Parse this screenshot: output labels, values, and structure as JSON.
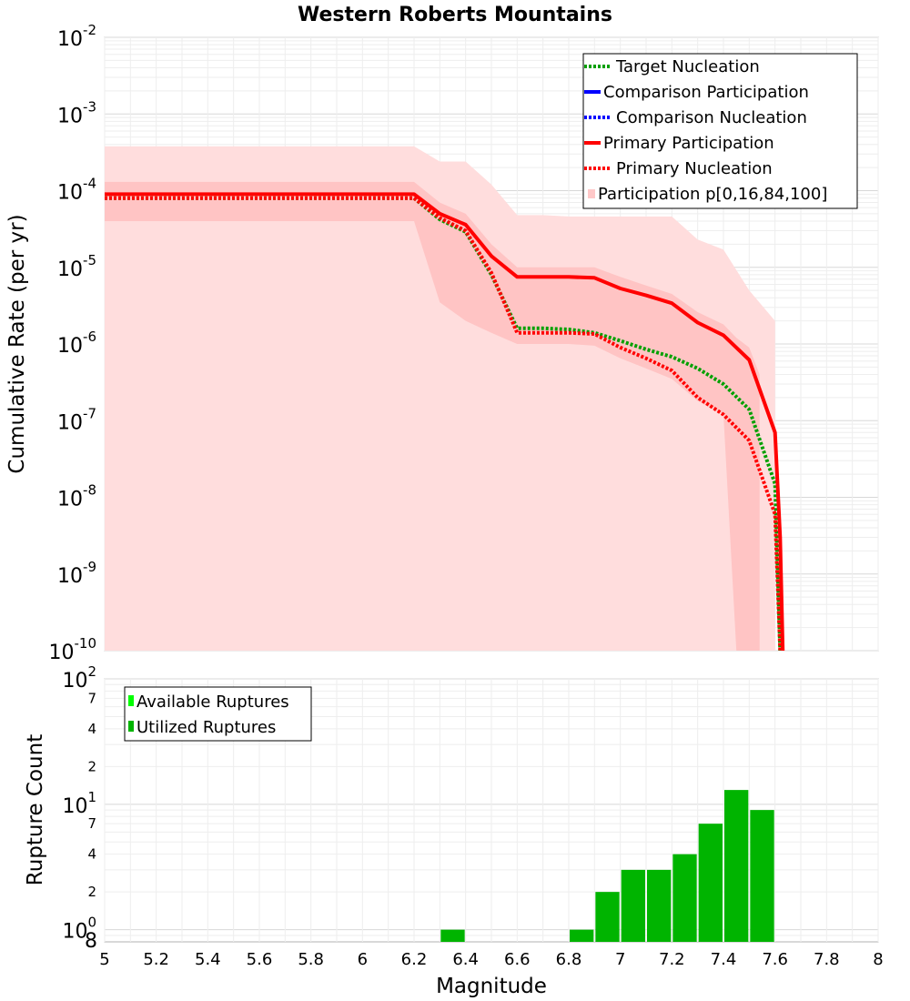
{
  "chart_data": [
    {
      "type": "line",
      "title": "Western Roberts Mountains",
      "xlabel": "Magnitude",
      "ylabel": "Cumulative Rate (per yr)",
      "xlim": [
        5,
        8
      ],
      "ylim": [
        1e-10,
        0.01
      ],
      "yscale": "log",
      "y_tick_base": "10",
      "y_tick_exps": [
        "-10",
        "-9",
        "-8",
        "-7",
        "-6",
        "-5",
        "-4",
        "-3",
        "-2"
      ],
      "legend_position": "top-right",
      "legend": [
        {
          "label": "Target Nucleation",
          "color": "#00a000",
          "style": "dotted"
        },
        {
          "label": "Comparison Participation",
          "color": "#0000ff",
          "style": "solid"
        },
        {
          "label": "Comparison Nucleation",
          "color": "#0000ff",
          "style": "dotted"
        },
        {
          "label": "Primary Participation",
          "color": "#ff0000",
          "style": "solid"
        },
        {
          "label": "Primary Nucleation",
          "color": "#ff0000",
          "style": "dotted"
        },
        {
          "label": "Participation p[0,16,84,100]",
          "color": "#ffc8c8",
          "style": "band"
        }
      ],
      "series": [
        {
          "name": "Primary Participation",
          "color": "#ff0000",
          "style": "solid",
          "x": [
            5.0,
            6.2,
            6.3,
            6.4,
            6.5,
            6.6,
            6.7,
            6.8,
            6.9,
            7.0,
            7.1,
            7.2,
            7.3,
            7.4,
            7.5,
            7.6,
            7.62,
            7.63
          ],
          "y": [
            9e-05,
            9e-05,
            5e-05,
            3.6e-05,
            1.4e-05,
            7.5e-06,
            7.5e-06,
            7.5e-06,
            7.3e-06,
            5.3e-06,
            4.3e-06,
            3.4e-06,
            1.9e-06,
            1.3e-06,
            6.2e-07,
            7e-08,
            3e-09,
            1e-10
          ]
        },
        {
          "name": "Primary Nucleation",
          "color": "#ff0000",
          "style": "dotted",
          "x": [
            5.0,
            6.2,
            6.3,
            6.4,
            6.5,
            6.6,
            6.7,
            6.8,
            6.9,
            7.0,
            7.1,
            7.2,
            7.3,
            7.4,
            7.5,
            7.6,
            7.62
          ],
          "y": [
            8e-05,
            8e-05,
            4.4e-05,
            3e-05,
            8.5e-06,
            1.4e-06,
            1.4e-06,
            1.4e-06,
            1.35e-06,
            9e-07,
            6.5e-07,
            4.5e-07,
            2e-07,
            1.2e-07,
            5.5e-08,
            6e-09,
            1e-10
          ]
        },
        {
          "name": "Target Nucleation",
          "color": "#00a000",
          "style": "dotted",
          "x": [
            5.0,
            6.2,
            6.3,
            6.4,
            6.5,
            6.6,
            6.7,
            6.8,
            6.9,
            7.0,
            7.1,
            7.2,
            7.3,
            7.4,
            7.5,
            7.6,
            7.62
          ],
          "y": [
            8e-05,
            8e-05,
            4.2e-05,
            2.9e-05,
            8e-06,
            1.6e-06,
            1.6e-06,
            1.55e-06,
            1.4e-06,
            1.1e-06,
            8.5e-07,
            6.8e-07,
            4.8e-07,
            3e-07,
            1.4e-07,
            1.5e-08,
            1e-10
          ]
        }
      ],
      "bands": [
        {
          "name": "Participation p[0,100]",
          "color": "#ffdddd",
          "x": [
            5.0,
            6.2,
            6.3,
            6.4,
            6.5,
            6.6,
            6.7,
            6.8,
            6.9,
            7.0,
            7.1,
            7.2,
            7.3,
            7.4,
            7.5,
            7.6
          ],
          "upper": [
            0.00038,
            0.00038,
            0.00024,
            0.00024,
            0.00012,
            4.8e-05,
            4.8e-05,
            4.6e-05,
            4.6e-05,
            4.6e-05,
            4.6e-05,
            4.6e-05,
            2.3e-05,
            1.7e-05,
            5e-06,
            2e-06
          ],
          "lower": [
            1e-10,
            1e-10,
            1e-10,
            1e-10,
            1e-10,
            1e-10,
            1e-10,
            1e-10,
            1e-10,
            1e-10,
            1e-10,
            1e-10,
            1e-10,
            1e-10,
            1e-10,
            1e-10
          ]
        },
        {
          "name": "Participation p[16,84]",
          "color": "#ffc4c4",
          "x": [
            5.0,
            6.2,
            6.3,
            6.4,
            6.5,
            6.6,
            6.7,
            6.8,
            6.9,
            7.0,
            7.1,
            7.2,
            7.3,
            7.4,
            7.45,
            7.5,
            7.54
          ],
          "upper": [
            0.00013,
            0.00013,
            7e-05,
            5e-05,
            2e-05,
            1e-05,
            1e-05,
            1e-05,
            1e-05,
            7.5e-06,
            5.8e-06,
            4.5e-06,
            2.6e-06,
            1.8e-06,
            1.2e-06,
            9e-07,
            4e-07
          ],
          "lower": [
            4e-05,
            4e-05,
            3.5e-06,
            2e-06,
            1.4e-06,
            1e-06,
            1e-06,
            1e-06,
            9.5e-07,
            6.5e-07,
            4.8e-07,
            3.5e-07,
            1.8e-07,
            1.2e-07,
            1e-10,
            1e-10,
            1e-10
          ]
        }
      ]
    },
    {
      "type": "bar",
      "xlabel": "Magnitude",
      "ylabel": "Rupture Count",
      "yscale": "log",
      "ylim": [
        0.8,
        100
      ],
      "y_major_ticks": [
        {
          "base": "10",
          "exp": "0",
          "value": 1
        },
        {
          "base": "10",
          "exp": "1",
          "value": 10
        },
        {
          "base": "10",
          "exp": "2",
          "value": 100
        }
      ],
      "y_minor_ticks": [
        {
          "label": "2",
          "value": 2
        },
        {
          "label": "4",
          "value": 4
        },
        {
          "label": "7",
          "value": 7
        },
        {
          "label": "2",
          "value": 20
        },
        {
          "label": "4",
          "value": 40
        },
        {
          "label": "7",
          "value": 70
        }
      ],
      "y_bottom_label": "8",
      "xlim": [
        5,
        8
      ],
      "x_ticks": [
        "5",
        "5.2",
        "5.4",
        "5.6",
        "5.8",
        "6",
        "6.2",
        "6.4",
        "6.6",
        "6.8",
        "7",
        "7.2",
        "7.4",
        "7.6",
        "7.8",
        "8"
      ],
      "legend_position": "top-left",
      "legend": [
        {
          "label": "Available Ruptures",
          "color": "#00ff00"
        },
        {
          "label": "Utilized Ruptures",
          "color": "#00b400"
        }
      ],
      "bar_width": 0.1,
      "categories": [
        6.35,
        6.85,
        6.95,
        7.05,
        7.15,
        7.25,
        7.35,
        7.45,
        7.55
      ],
      "series": [
        {
          "name": "Utilized Ruptures",
          "color": "#00b400",
          "values": [
            1,
            1,
            2,
            3,
            3,
            4,
            7,
            13,
            9
          ]
        }
      ]
    }
  ]
}
